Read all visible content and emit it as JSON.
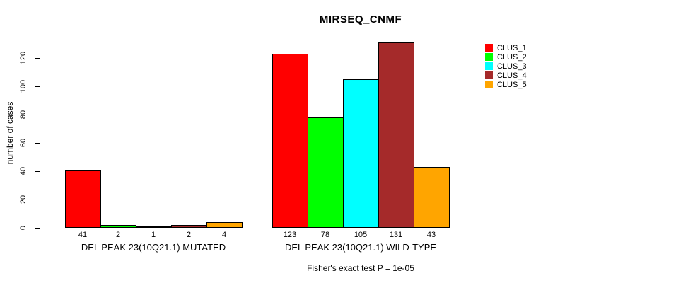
{
  "chart_data": {
    "type": "bar",
    "title": "MIRSEQ_CNMF",
    "ylabel": "number of cases",
    "xlabel": "",
    "yticks": [
      0,
      20,
      40,
      60,
      80,
      100,
      120
    ],
    "ylim": [
      0,
      131
    ],
    "grid": false,
    "legend_position": "right",
    "series": [
      {
        "name": "CLUS_1",
        "color": "#FF0000",
        "values": [
          41,
          123
        ]
      },
      {
        "name": "CLUS_2",
        "color": "#00FF00",
        "values": [
          2,
          78
        ]
      },
      {
        "name": "CLUS_3",
        "color": "#00FFFF",
        "values": [
          1,
          105
        ]
      },
      {
        "name": "CLUS_4",
        "color": "#A52A2A",
        "values": [
          2,
          131
        ]
      },
      {
        "name": "CLUS_5",
        "color": "#FFA500",
        "values": [
          4,
          43
        ]
      }
    ],
    "groups": [
      {
        "label": "DEL PEAK 23(10Q21.1) MUTATED",
        "values": [
          41,
          2,
          1,
          2,
          4
        ]
      },
      {
        "label": "DEL PEAK 23(10Q21.1) WILD-TYPE",
        "values": [
          123,
          78,
          105,
          131,
          43
        ]
      }
    ],
    "annotation": "Fisher's exact test P = 1e-05"
  },
  "legend": {
    "items": [
      {
        "label": "CLUS_1",
        "color": "#FF0000"
      },
      {
        "label": "CLUS_2",
        "color": "#00FF00"
      },
      {
        "label": "CLUS_3",
        "color": "#00FFFF"
      },
      {
        "label": "CLUS_4",
        "color": "#A52A2A"
      },
      {
        "label": "CLUS_5",
        "color": "#FFA500"
      }
    ]
  },
  "colors": {
    "text": "#000000",
    "background": "#FFFFFF",
    "axis": "#000000"
  }
}
